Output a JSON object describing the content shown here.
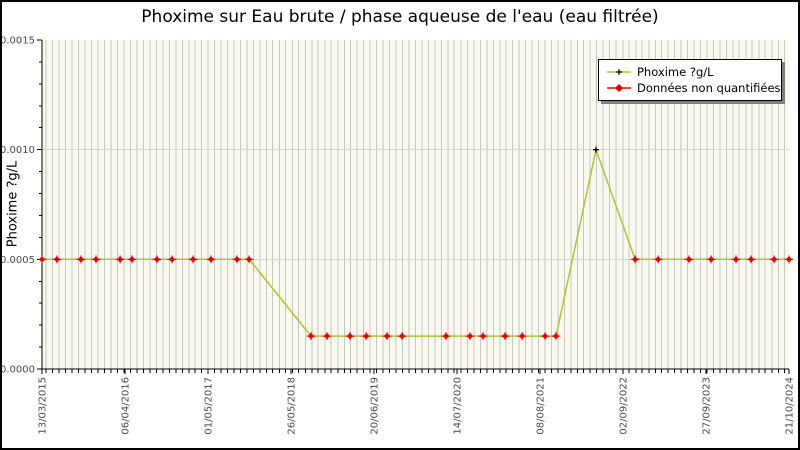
{
  "title": "Phoxime sur Eau brute / phase aqueuse de l'eau (eau filtrée)",
  "legend": {
    "items": [
      {
        "label": "Phoxime ?g/L",
        "marker": "black-plus-on-green-line"
      },
      {
        "label": "Données non quantifiées",
        "marker": "red-diamond-on-red-line"
      }
    ]
  },
  "colors": {
    "series_line": "#a8c832",
    "quantified_marker": "#000000",
    "non_quantified": "#e60000",
    "plot_bg": "#f9f9f0",
    "grid_vertical": "#c8c8c0",
    "grid_horizontal": "#d4d4cc",
    "axis": "#000000",
    "tick_text": "#4a4a4a",
    "legend_shadow": "#7f7f7f"
  },
  "chart_data": {
    "type": "line",
    "title": "Phoxime sur Eau brute / phase aqueuse de l'eau (eau filtrée)",
    "ylabel": "Phoxime ?g/L",
    "xlabel": "",
    "ylim": [
      0,
      0.0015
    ],
    "y_tick_labels": [
      "0.0000",
      "0.0005",
      "0.0010",
      "0.0015"
    ],
    "y_major_step": 0.0005,
    "y_minor_step": 0.0001,
    "x_range": {
      "start": "13/03/2015",
      "end": "21/10/2024",
      "total_days": 3510
    },
    "x_tick_labels": [
      "13/03/2015",
      "06/04/2016",
      "01/05/2017",
      "26/05/2018",
      "20/06/2019",
      "14/07/2020",
      "08/08/2021",
      "02/09/2022",
      "27/09/2023",
      "21/10/2024"
    ],
    "x_tick_step_days": 390,
    "grid": {
      "vertical": "monthly",
      "horizontal": "at y majors 0.0005 and 0.0010"
    },
    "legend_position": "top-right",
    "x_day_offsets_from": "13/03/2015",
    "point_fields": [
      "day_offset",
      "value_ug_per_L",
      "quantified"
    ],
    "series": [
      {
        "name": "Phoxime ?g/L",
        "line_color": "#a8c832",
        "points": [
          [
            0,
            0.0005,
            false
          ],
          [
            70,
            0.0005,
            false
          ],
          [
            183,
            0.0005,
            false
          ],
          [
            254,
            0.0005,
            false
          ],
          [
            367,
            0.0005,
            false
          ],
          [
            423,
            0.0005,
            false
          ],
          [
            540,
            0.0005,
            false
          ],
          [
            611,
            0.0005,
            false
          ],
          [
            710,
            0.0005,
            false
          ],
          [
            794,
            0.0005,
            false
          ],
          [
            916,
            0.0005,
            false
          ],
          [
            973,
            0.0005,
            false
          ],
          [
            1264,
            0.00015,
            false
          ],
          [
            1339,
            0.00015,
            false
          ],
          [
            1447,
            0.00015,
            false
          ],
          [
            1523,
            0.00015,
            false
          ],
          [
            1621,
            0.00015,
            false
          ],
          [
            1692,
            0.00015,
            false
          ],
          [
            1898,
            0.00015,
            false
          ],
          [
            2011,
            0.00015,
            false
          ],
          [
            2072,
            0.00015,
            false
          ],
          [
            2176,
            0.00015,
            false
          ],
          [
            2256,
            0.00015,
            false
          ],
          [
            2364,
            0.00015,
            false
          ],
          [
            2415,
            0.00015,
            false
          ],
          [
            2603,
            0.001,
            true
          ],
          [
            2787,
            0.0005,
            false
          ],
          [
            2895,
            0.0005,
            false
          ],
          [
            3040,
            0.0005,
            false
          ],
          [
            3144,
            0.0005,
            false
          ],
          [
            3261,
            0.0005,
            false
          ],
          [
            3332,
            0.0005,
            false
          ],
          [
            3440,
            0.0005,
            false
          ],
          [
            3510,
            0.0005,
            false
          ]
        ]
      }
    ]
  }
}
